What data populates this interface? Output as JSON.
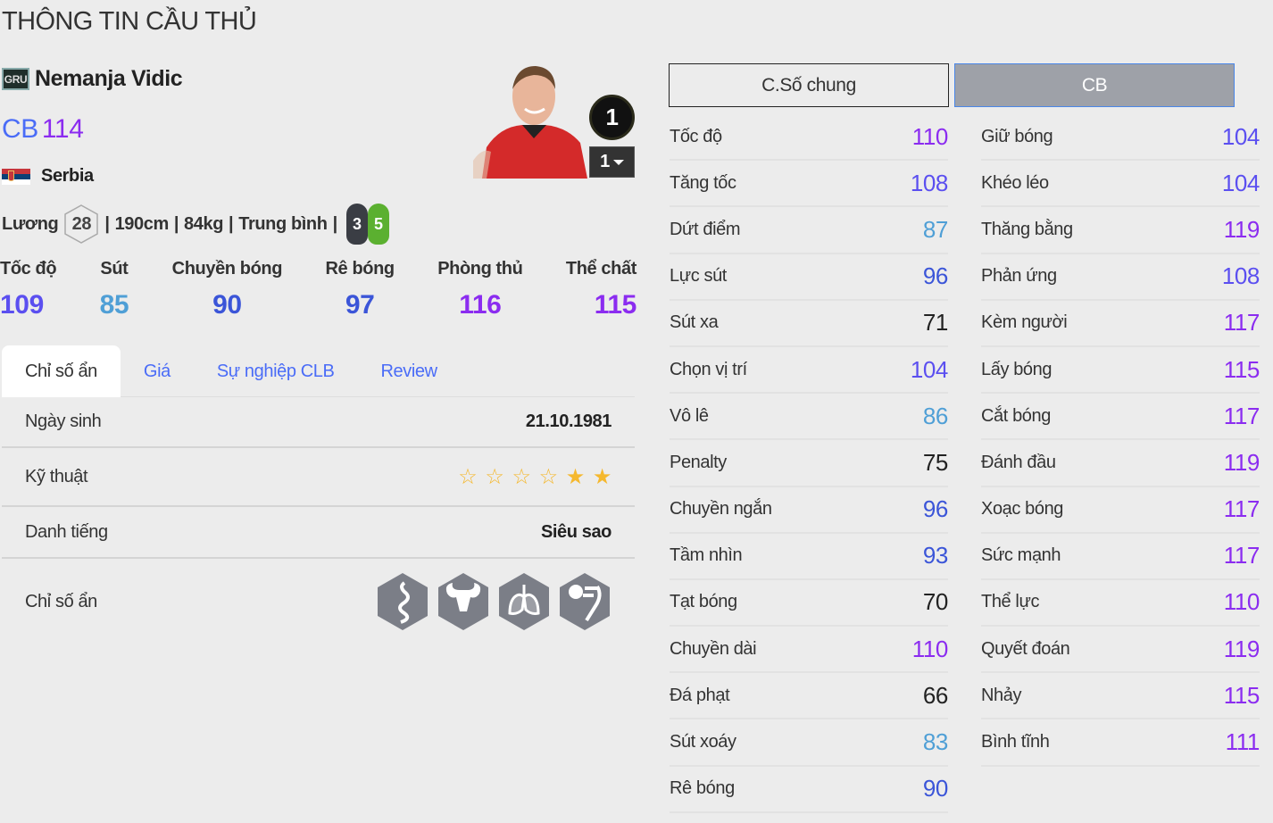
{
  "page_title": "THÔNG TIN CẦU THỦ",
  "player": {
    "season_badge": "GRU",
    "name": "Nemanja Vidic",
    "position": "CB",
    "overall": "114",
    "nation": "Serbia",
    "salary_label": "Lương",
    "salary": "28",
    "height": "190cm",
    "weight": "84kg",
    "body_type": "Trung bình",
    "weak_foot": "3",
    "strong_foot": "5",
    "level_circle": "1",
    "level_select": "1"
  },
  "main_stats": [
    {
      "label": "Tốc độ",
      "value": 109
    },
    {
      "label": "Sút",
      "value": 85
    },
    {
      "label": "Chuyền bóng",
      "value": 90
    },
    {
      "label": "Rê bóng",
      "value": 97
    },
    {
      "label": "Phòng thủ",
      "value": 116
    },
    {
      "label": "Thể chất",
      "value": 115
    }
  ],
  "tabs": [
    {
      "label": "Chỉ số ẩn",
      "active": true
    },
    {
      "label": "Giá"
    },
    {
      "label": "Sự nghiệp CLB"
    },
    {
      "label": "Review"
    }
  ],
  "info": {
    "birth_label": "Ngày sinh",
    "birth_value": "21.10.1981",
    "skill_label": "Kỹ thuật",
    "skill_stars_total": 6,
    "skill_stars_filled": 2,
    "fame_label": "Danh tiếng",
    "fame_value": "Siêu sao",
    "traits_label": "Chỉ số ẩn",
    "traits": [
      "snake-trait-icon",
      "bull-trait-icon",
      "lungs-trait-icon",
      "ball-kick-trait-icon"
    ]
  },
  "stat_tabs": {
    "general": "C.Số chung",
    "position": "CB"
  },
  "stats_left": [
    {
      "label": "Tốc độ",
      "value": 110
    },
    {
      "label": "Tăng tốc",
      "value": 108
    },
    {
      "label": "Dứt điểm",
      "value": 87
    },
    {
      "label": "Lực sút",
      "value": 96
    },
    {
      "label": "Sút xa",
      "value": 71
    },
    {
      "label": "Chọn vị trí",
      "value": 104
    },
    {
      "label": "Vô lê",
      "value": 86
    },
    {
      "label": "Penalty",
      "value": 75
    },
    {
      "label": "Chuyền ngắn",
      "value": 96
    },
    {
      "label": "Tầm nhìn",
      "value": 93
    },
    {
      "label": "Tạt bóng",
      "value": 70
    },
    {
      "label": "Chuyền dài",
      "value": 110
    },
    {
      "label": "Đá phạt",
      "value": 66
    },
    {
      "label": "Sút xoáy",
      "value": 83
    },
    {
      "label": "Rê bóng",
      "value": 90
    }
  ],
  "stats_right": [
    {
      "label": "Giữ bóng",
      "value": 104
    },
    {
      "label": "Khéo léo",
      "value": 104
    },
    {
      "label": "Thăng bằng",
      "value": 119
    },
    {
      "label": "Phản ứng",
      "value": 108
    },
    {
      "label": "Kèm người",
      "value": 117
    },
    {
      "label": "Lấy bóng",
      "value": 115
    },
    {
      "label": "Cắt bóng",
      "value": 117
    },
    {
      "label": "Đánh đầu",
      "value": 119
    },
    {
      "label": "Xoạc bóng",
      "value": 117
    },
    {
      "label": "Sức mạnh",
      "value": 117
    },
    {
      "label": "Thể lực",
      "value": 110
    },
    {
      "label": "Quyết đoán",
      "value": 119
    },
    {
      "label": "Nhảy",
      "value": 115
    },
    {
      "label": "Bình tĩnh",
      "value": 111
    }
  ],
  "colors": {
    "stat_110_plus": "#8b2cf0",
    "stat_100_109": "#5b4ff0",
    "stat_90_99": "#3b55d8",
    "stat_80_89": "#4f9fd6",
    "stat_below_80": "#222222",
    "star": "#f5b82e",
    "weak_foot": "#3a3d44",
    "strong_foot": "#5bb030"
  }
}
